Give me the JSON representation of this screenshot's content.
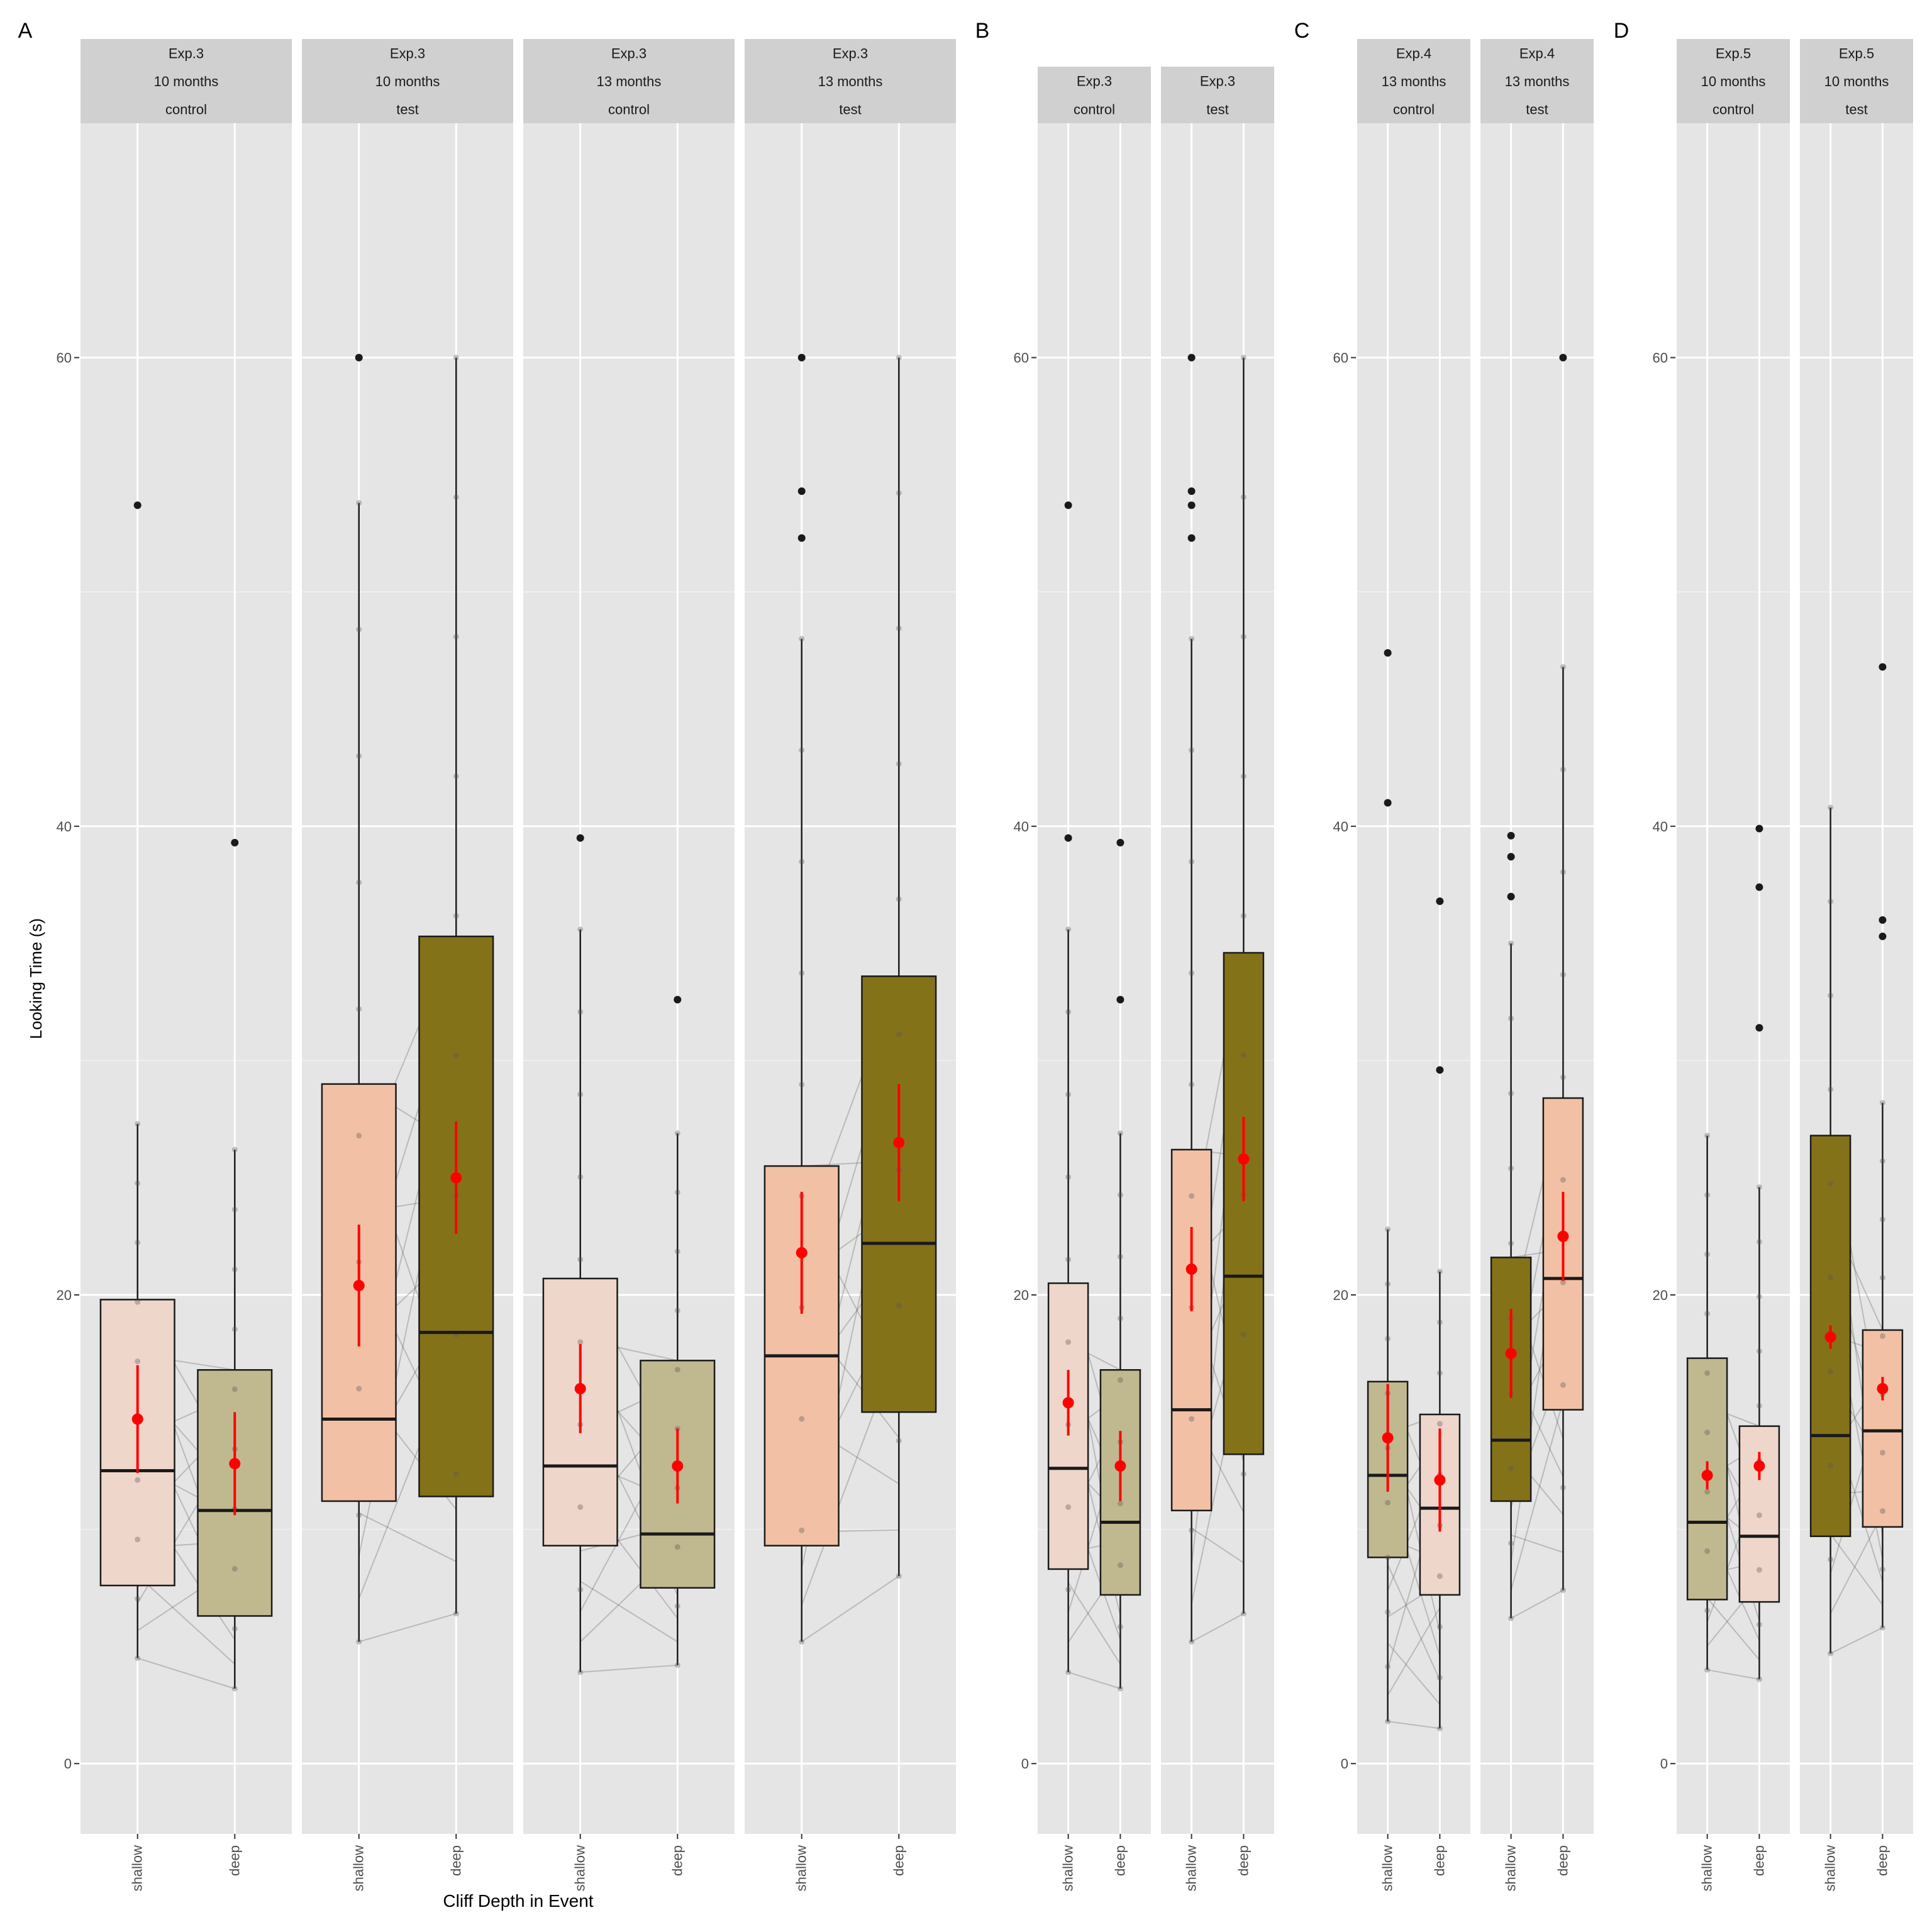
{
  "figure": {
    "ylabel": "Looking Time (s)",
    "xlabel": "Cliff Depth in Event",
    "y_ticks": [
      "0",
      "20",
      "40",
      "60"
    ],
    "x_ticks": [
      "shallow",
      "deep"
    ]
  },
  "colors": {
    "shallow_light": "#eed6cb",
    "shallow_mid": "#f2c1a5",
    "deep_light": "#c0b990",
    "deep_dark": "#847219",
    "mean_point": "#ff0000",
    "panel_bg": "#e5e5e5",
    "strip_bg": "#d0d0d0"
  },
  "chart_data": [
    {
      "type": "box",
      "panel_label": "A",
      "ylim": [
        -3,
        70
      ],
      "facets": [
        {
          "strip": [
            "Exp.3",
            "10 months",
            "control"
          ],
          "groups": [
            {
              "category": "shallow",
              "fill": "shallow_light",
              "q1": 7.6,
              "median": 12.5,
              "q3": 19.8,
              "whisker_low": 4.5,
              "whisker_high": 27.3,
              "mean": 14.7,
              "ci": [
                12.4,
                17.0
              ],
              "outliers": [
                53.7
              ]
            },
            {
              "category": "deep",
              "fill": "deep_light",
              "q1": 6.3,
              "median": 10.8,
              "q3": 16.8,
              "whisker_low": 3.2,
              "whisker_high": 26.2,
              "mean": 12.8,
              "ci": [
                10.6,
                15.0
              ],
              "outliers": [
                39.3
              ]
            }
          ]
        },
        {
          "strip": [
            "Exp.3",
            "10 months",
            "test"
          ],
          "groups": [
            {
              "category": "shallow",
              "fill": "shallow_mid",
              "q1": 11.2,
              "median": 14.7,
              "q3": 29.0,
              "whisker_low": 5.2,
              "whisker_high": 53.8,
              "mean": 20.4,
              "ci": [
                17.8,
                23.0
              ],
              "outliers": [
                60.0
              ]
            },
            {
              "category": "deep",
              "fill": "deep_dark",
              "q1": 11.4,
              "median": 18.4,
              "q3": 35.3,
              "whisker_low": 6.4,
              "whisker_high": 60.0,
              "mean": 25.0,
              "ci": [
                22.6,
                27.4
              ],
              "outliers": []
            }
          ]
        },
        {
          "strip": [
            "Exp.3",
            "13 months",
            "control"
          ],
          "groups": [
            {
              "category": "shallow",
              "fill": "shallow_light",
              "q1": 9.3,
              "median": 12.7,
              "q3": 20.7,
              "whisker_low": 3.9,
              "whisker_high": 35.6,
              "mean": 16.0,
              "ci": [
                14.1,
                17.9
              ],
              "outliers": [
                39.5
              ]
            },
            {
              "category": "deep",
              "fill": "deep_light",
              "q1": 7.5,
              "median": 9.8,
              "q3": 17.2,
              "whisker_low": 4.2,
              "whisker_high": 26.9,
              "mean": 12.7,
              "ci": [
                11.1,
                14.3
              ],
              "outliers": [
                32.6
              ]
            }
          ]
        },
        {
          "strip": [
            "Exp.3",
            "13 months",
            "test"
          ],
          "groups": [
            {
              "category": "shallow",
              "fill": "shallow_mid",
              "q1": 9.3,
              "median": 17.4,
              "q3": 25.5,
              "whisker_low": 5.2,
              "whisker_high": 48.0,
              "mean": 21.8,
              "ci": [
                19.2,
                24.4
              ],
              "outliers": [
                60.0,
                54.3,
                52.3
              ]
            },
            {
              "category": "deep",
              "fill": "deep_dark",
              "q1": 15.0,
              "median": 22.2,
              "q3": 33.6,
              "whisker_low": 8.0,
              "whisker_high": 60.0,
              "mean": 26.5,
              "ci": [
                24.0,
                29.0
              ],
              "outliers": []
            }
          ]
        }
      ]
    },
    {
      "type": "box",
      "panel_label": "B",
      "ylim": [
        -3,
        70
      ],
      "facets": [
        {
          "strip": [
            "Exp.3",
            "control"
          ],
          "groups": [
            {
              "category": "shallow",
              "fill": "shallow_light",
              "q1": 8.3,
              "median": 12.6,
              "q3": 20.5,
              "whisker_low": 3.9,
              "whisker_high": 35.6,
              "mean": 15.4,
              "ci": [
                14.0,
                16.8
              ],
              "outliers": [
                53.7,
                39.5
              ]
            },
            {
              "category": "deep",
              "fill": "deep_light",
              "q1": 7.2,
              "median": 10.3,
              "q3": 16.8,
              "whisker_low": 3.2,
              "whisker_high": 26.9,
              "mean": 12.7,
              "ci": [
                11.2,
                14.2
              ],
              "outliers": [
                39.3,
                32.6
              ]
            }
          ]
        },
        {
          "strip": [
            "Exp.3",
            "test"
          ],
          "groups": [
            {
              "category": "shallow",
              "fill": "shallow_mid",
              "q1": 10.8,
              "median": 15.1,
              "q3": 26.2,
              "whisker_low": 5.2,
              "whisker_high": 48.0,
              "mean": 21.1,
              "ci": [
                19.3,
                22.9
              ],
              "outliers": [
                60.0,
                54.3,
                53.7,
                52.3
              ]
            },
            {
              "category": "deep",
              "fill": "deep_dark",
              "q1": 13.2,
              "median": 20.8,
              "q3": 34.6,
              "whisker_low": 6.4,
              "whisker_high": 60.0,
              "mean": 25.8,
              "ci": [
                24.0,
                27.6
              ],
              "outliers": []
            }
          ]
        }
      ]
    },
    {
      "type": "box",
      "panel_label": "C",
      "ylim": [
        -3,
        70
      ],
      "facets": [
        {
          "strip": [
            "Exp.4",
            "13 months",
            "control"
          ],
          "groups": [
            {
              "category": "shallow",
              "fill": "deep_light",
              "q1": 8.8,
              "median": 12.3,
              "q3": 16.3,
              "whisker_low": 1.8,
              "whisker_high": 22.8,
              "mean": 13.9,
              "ci": [
                11.6,
                16.2
              ],
              "outliers": [
                47.4,
                41.0
              ]
            },
            {
              "category": "deep",
              "fill": "shallow_light",
              "q1": 7.2,
              "median": 10.9,
              "q3": 14.9,
              "whisker_low": 1.5,
              "whisker_high": 21.0,
              "mean": 12.1,
              "ci": [
                9.9,
                14.3
              ],
              "outliers": [
                36.8,
                29.6
              ]
            }
          ]
        },
        {
          "strip": [
            "Exp.4",
            "13 months",
            "test"
          ],
          "groups": [
            {
              "category": "shallow",
              "fill": "deep_dark",
              "q1": 11.2,
              "median": 13.8,
              "q3": 21.6,
              "whisker_low": 6.2,
              "whisker_high": 35.0,
              "mean": 17.5,
              "ci": [
                15.6,
                19.4
              ],
              "outliers": [
                39.6,
                38.7,
                37.0
              ]
            },
            {
              "category": "deep",
              "fill": "shallow_mid",
              "q1": 15.1,
              "median": 20.7,
              "q3": 28.4,
              "whisker_low": 7.4,
              "whisker_high": 46.8,
              "mean": 22.5,
              "ci": [
                20.6,
                24.4
              ],
              "outliers": [
                60.0
              ]
            }
          ]
        }
      ]
    },
    {
      "type": "box",
      "panel_label": "D",
      "ylim": [
        -3,
        70
      ],
      "facets": [
        {
          "strip": [
            "Exp.5",
            "10 months",
            "control"
          ],
          "groups": [
            {
              "category": "shallow",
              "fill": "deep_light",
              "q1": 7.0,
              "median": 10.3,
              "q3": 17.3,
              "whisker_low": 4.0,
              "whisker_high": 26.8,
              "mean": 12.3,
              "ci": [
                11.7,
                12.9
              ],
              "outliers": []
            },
            {
              "category": "deep",
              "fill": "shallow_light",
              "q1": 6.9,
              "median": 9.7,
              "q3": 14.4,
              "whisker_low": 3.6,
              "whisker_high": 24.6,
              "mean": 12.7,
              "ci": [
                12.1,
                13.3
              ],
              "outliers": [
                39.9,
                37.4,
                31.4
              ]
            }
          ]
        },
        {
          "strip": [
            "Exp.5",
            "10 months",
            "test"
          ],
          "groups": [
            {
              "category": "shallow",
              "fill": "deep_dark",
              "q1": 9.7,
              "median": 14.0,
              "q3": 26.8,
              "whisker_low": 4.7,
              "whisker_high": 40.8,
              "mean": 18.2,
              "ci": [
                17.7,
                18.7
              ],
              "outliers": []
            },
            {
              "category": "deep",
              "fill": "shallow_mid",
              "q1": 10.1,
              "median": 14.2,
              "q3": 18.5,
              "whisker_low": 5.8,
              "whisker_high": 28.2,
              "mean": 16.0,
              "ci": [
                15.5,
                16.5
              ],
              "outliers": [
                46.8,
                36.0,
                35.3
              ]
            }
          ]
        }
      ]
    }
  ]
}
